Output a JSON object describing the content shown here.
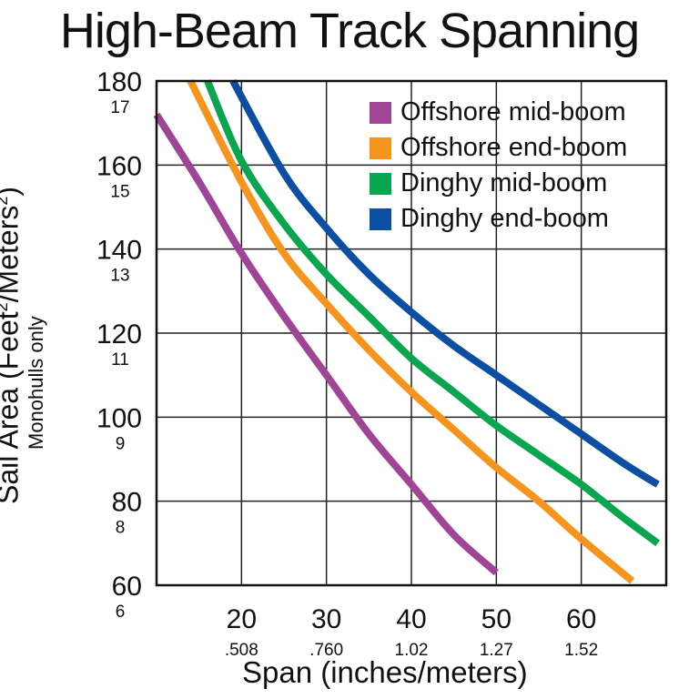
{
  "title": "High-Beam Track Spanning",
  "y_title_main": "Sail Area (Feet",
  "y_title_sup1": "2",
  "y_title_mid": "/Meters",
  "y_title_sup2": "2",
  "y_title_end": ")",
  "y_subtitle": "Monohulls only",
  "x_title": "Span (inches/meters)",
  "colors": {
    "offshore_mid": "#a04596",
    "offshore_end": "#f7941d",
    "dinghy_mid": "#0aa64f",
    "dinghy_end": "#0b4ea2"
  },
  "chart_data": {
    "type": "line",
    "title": "High-Beam Track Spanning",
    "xlabel": "Span (inches/meters)",
    "ylabel": "Sail Area (Feet²/Meters²) Monohulls only",
    "xlim": [
      10,
      70
    ],
    "ylim": [
      60,
      180
    ],
    "x_ticks": [
      {
        "value": 20,
        "label": "20",
        "sublabel": ".508"
      },
      {
        "value": 30,
        "label": "30",
        "sublabel": ".760"
      },
      {
        "value": 40,
        "label": "40",
        "sublabel": "1.02"
      },
      {
        "value": 50,
        "label": "50",
        "sublabel": "1.27"
      },
      {
        "value": 60,
        "label": "60",
        "sublabel": "1.52"
      }
    ],
    "y_ticks": [
      {
        "value": 60,
        "label": "60",
        "sublabel": "6"
      },
      {
        "value": 80,
        "label": "80",
        "sublabel": "8"
      },
      {
        "value": 100,
        "label": "100",
        "sublabel": "9"
      },
      {
        "value": 120,
        "label": "120",
        "sublabel": "11"
      },
      {
        "value": 140,
        "label": "140",
        "sublabel": "13"
      },
      {
        "value": 160,
        "label": "160",
        "sublabel": "15"
      },
      {
        "value": 180,
        "label": "180",
        "sublabel": "17"
      }
    ],
    "grid": true,
    "legend": "top-right",
    "series": [
      {
        "name": "Offshore mid-boom",
        "color": "#a04596",
        "x": [
          10,
          15,
          20,
          25,
          30,
          35,
          40,
          45,
          50
        ],
        "y": [
          172,
          156,
          139,
          124,
          110,
          96,
          84,
          72,
          63
        ]
      },
      {
        "name": "Offshore end-boom",
        "color": "#f7941d",
        "x": [
          14,
          20,
          25,
          30,
          35,
          40,
          45,
          50,
          55,
          60,
          66
        ],
        "y": [
          180,
          156,
          139,
          127,
          116,
          106,
          97,
          88,
          80,
          71,
          61
        ]
      },
      {
        "name": "Dinghy mid-boom",
        "color": "#0aa64f",
        "x": [
          16,
          20,
          25,
          30,
          35,
          40,
          45,
          50,
          55,
          60,
          65,
          69
        ],
        "y": [
          180,
          161,
          146,
          134,
          124,
          114,
          106,
          98,
          91,
          84,
          76,
          70
        ]
      },
      {
        "name": "Dinghy end-boom",
        "color": "#0b4ea2",
        "x": [
          19,
          25,
          30,
          35,
          40,
          45,
          50,
          55,
          60,
          65,
          69
        ],
        "y": [
          180,
          158,
          145,
          134,
          125,
          117,
          110,
          103,
          96,
          89,
          84
        ]
      }
    ]
  }
}
